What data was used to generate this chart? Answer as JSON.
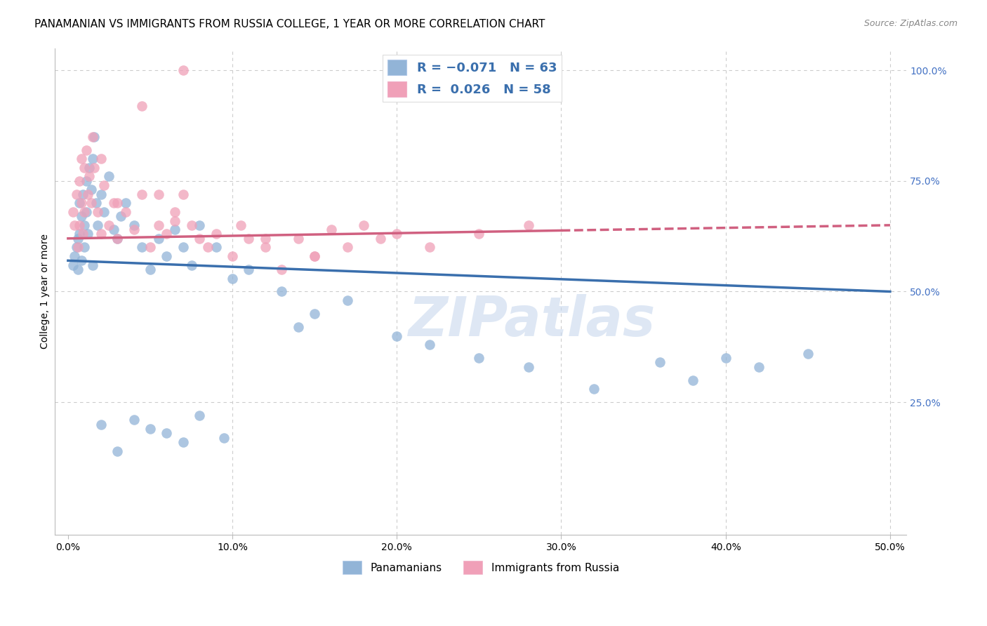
{
  "title": "PANAMANIAN VS IMMIGRANTS FROM RUSSIA COLLEGE, 1 YEAR OR MORE CORRELATION CHART",
  "source": "Source: ZipAtlas.com",
  "ylabel": "College, 1 year or more",
  "xlim": [
    0,
    50
  ],
  "ylim": [
    0,
    100
  ],
  "blue_line": {
    "x0": 0,
    "y0": 57,
    "x1": 50,
    "y1": 50
  },
  "pink_line": {
    "x0": 0,
    "y0": 62,
    "x1": 50,
    "y1": 65
  },
  "pink_line_solid_end": 30,
  "blue_color": "#92b4d7",
  "pink_color": "#f0a0b8",
  "blue_line_color": "#3a6fad",
  "pink_line_color": "#d06080",
  "watermark": "ZIPatlas",
  "watermark_color": "#c8d8ee",
  "background_color": "#ffffff",
  "grid_color": "#cccccc",
  "right_tick_color": "#4472c4",
  "title_fontsize": 11,
  "axis_label_fontsize": 10,
  "tick_fontsize": 10,
  "legend_label_color": "#3a6fad",
  "pan_x": [
    0.3,
    0.4,
    0.5,
    0.6,
    0.6,
    0.7,
    0.7,
    0.8,
    0.8,
    0.9,
    1.0,
    1.0,
    1.1,
    1.1,
    1.2,
    1.3,
    1.4,
    1.5,
    1.5,
    1.6,
    1.7,
    1.8,
    2.0,
    2.2,
    2.5,
    2.8,
    3.0,
    3.2,
    3.5,
    4.0,
    4.5,
    5.0,
    5.5,
    6.0,
    6.5,
    7.0,
    7.5,
    8.0,
    9.0,
    10.0,
    11.0,
    13.0,
    14.0,
    15.0,
    17.0,
    20.0,
    22.0,
    25.0,
    28.0,
    32.0,
    36.0,
    38.0,
    40.0,
    42.0,
    45.0,
    2.0,
    3.0,
    4.0,
    5.0,
    6.0,
    7.0,
    8.0,
    9.5
  ],
  "pan_y": [
    56,
    58,
    60,
    62,
    55,
    63,
    70,
    67,
    57,
    72,
    60,
    65,
    75,
    68,
    63,
    78,
    73,
    80,
    56,
    85,
    70,
    65,
    72,
    68,
    76,
    64,
    62,
    67,
    70,
    65,
    60,
    55,
    62,
    58,
    64,
    60,
    56,
    65,
    60,
    53,
    55,
    50,
    42,
    45,
    48,
    40,
    38,
    35,
    33,
    28,
    34,
    30,
    35,
    33,
    36,
    20,
    14,
    21,
    19,
    18,
    16,
    22,
    17
  ],
  "rus_x": [
    0.3,
    0.4,
    0.5,
    0.6,
    0.7,
    0.7,
    0.8,
    0.8,
    0.9,
    1.0,
    1.0,
    1.1,
    1.2,
    1.3,
    1.4,
    1.5,
    1.6,
    1.8,
    2.0,
    2.2,
    2.5,
    2.8,
    3.0,
    3.5,
    4.0,
    4.5,
    5.0,
    5.5,
    6.0,
    6.5,
    7.0,
    7.5,
    8.0,
    9.0,
    10.0,
    11.0,
    12.0,
    13.0,
    14.0,
    15.0,
    16.0,
    17.0,
    18.0,
    19.0,
    20.0,
    22.0,
    25.0,
    28.0,
    7.0,
    4.5,
    2.0,
    3.0,
    5.5,
    6.5,
    8.5,
    10.5,
    12.0,
    15.0
  ],
  "rus_y": [
    68,
    65,
    72,
    60,
    75,
    65,
    70,
    80,
    63,
    78,
    68,
    82,
    72,
    76,
    70,
    85,
    78,
    68,
    80,
    74,
    65,
    70,
    62,
    68,
    64,
    72,
    60,
    65,
    63,
    68,
    72,
    65,
    62,
    63,
    58,
    62,
    60,
    55,
    62,
    58,
    64,
    60,
    65,
    62,
    63,
    60,
    63,
    65,
    100,
    92,
    63,
    70,
    72,
    66,
    60,
    65,
    62,
    58
  ]
}
